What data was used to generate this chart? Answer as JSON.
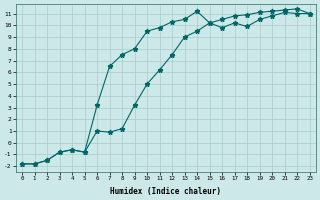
{
  "xlabel": "Humidex (Indice chaleur)",
  "background_color": "#cce8e8",
  "grid_color": "#aacccc",
  "line_color": "#006666",
  "xlim": [
    -0.5,
    23.5
  ],
  "ylim": [
    -2.5,
    11.8
  ],
  "xticks": [
    0,
    1,
    2,
    3,
    4,
    5,
    6,
    7,
    8,
    9,
    10,
    11,
    12,
    13,
    14,
    15,
    16,
    17,
    18,
    19,
    20,
    21,
    22,
    23
  ],
  "yticks": [
    -2,
    -1,
    0,
    1,
    2,
    3,
    4,
    5,
    6,
    7,
    8,
    9,
    10,
    11
  ],
  "line1_x": [
    0,
    1,
    2,
    3,
    4,
    5,
    6,
    7,
    8,
    9,
    10,
    11,
    12,
    13,
    14,
    15,
    16,
    17,
    18,
    19,
    20,
    21,
    22,
    23
  ],
  "line1_y": [
    -1.8,
    -1.8,
    -1.5,
    -0.8,
    -0.6,
    -0.8,
    3.2,
    6.5,
    7.5,
    8.0,
    9.5,
    9.8,
    10.3,
    10.5,
    11.2,
    10.2,
    9.8,
    10.2,
    9.9,
    10.5,
    10.8,
    11.1,
    11.0,
    11.0
  ],
  "line2_x": [
    0,
    1,
    2,
    3,
    4,
    5,
    6,
    7,
    8,
    9,
    10,
    11,
    12,
    13,
    14,
    15,
    16,
    17,
    18,
    19,
    20,
    21,
    22,
    23
  ],
  "line2_y": [
    -1.8,
    -1.8,
    -1.5,
    -0.8,
    -0.6,
    -0.8,
    1.0,
    0.9,
    1.2,
    3.2,
    5.0,
    6.2,
    7.5,
    9.0,
    9.5,
    10.2,
    10.5,
    10.8,
    10.9,
    11.1,
    11.2,
    11.3,
    11.4,
    11.0
  ],
  "marker_size": 3.5,
  "line_width": 0.8
}
